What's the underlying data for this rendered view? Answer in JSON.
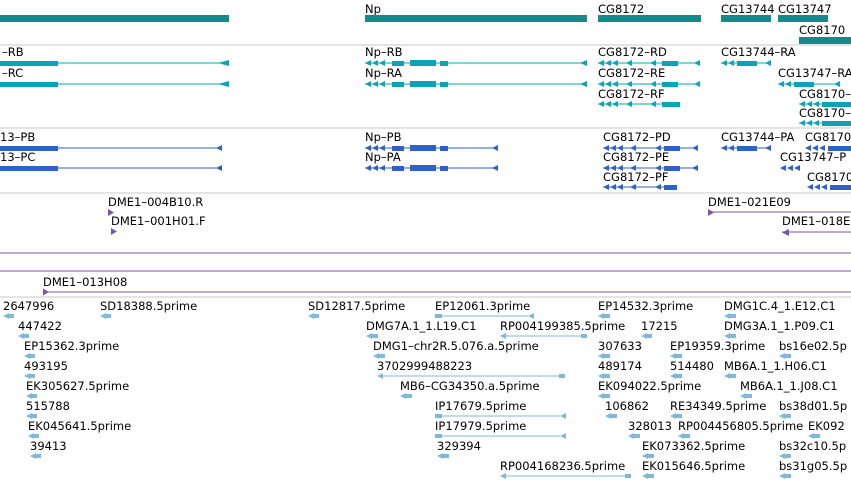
{
  "genes": {
    "np": "Np",
    "cg8172": "CG8172",
    "cg13744": "CG13744",
    "cg13747": "CG13747",
    "cg8170": "CG8170"
  },
  "transcripts": {
    "rb_left": "–RB",
    "rc_left": "–RC",
    "np_rb": "Np–RB",
    "np_ra": "Np–RA",
    "cg8172_rd": "CG8172–RD",
    "cg8172_re": "CG8172–RE",
    "cg8172_rf": "CG8172–RF",
    "cg13744_ra": "CG13744–RA",
    "cg13747_ra": "CG13747–RA",
    "cg8170_r1": "CG8170–",
    "cg8170_r2": "CG8170–"
  },
  "proteins": {
    "pb_left": "13–PB",
    "pc_left": "13–PC",
    "np_pb": "Np–PB",
    "np_pa": "Np–PA",
    "cg8172_pd": "CG8172–PD",
    "cg8172_pe": "CG8172–PE",
    "cg8172_pf": "CG8172–PF",
    "cg13744_pa": "CG13744–PA",
    "cg8170_p1": "CG8170",
    "cg13747_p": "CG13747–P",
    "cg8170_p2": "CG8170"
  },
  "clones": {
    "c1": "DME1–004B10.R",
    "c2": "DME1–001H01.F",
    "c3": "DME1–021E09",
    "c4": "DME1–018E",
    "c5": "DME1–013H08"
  },
  "ests": {
    "e01": "2647996",
    "e02": "SD18388.5prime",
    "e03": "SD12817.5prime",
    "e04": "EP12061.3prime",
    "e05": "EP14532.3prime",
    "e06": "DMG1C.4_1.E12.C1",
    "e07": "447422",
    "e08": "DMG7A.1_1.L19.C1",
    "e09": "RP004199385.5prime",
    "e10": "17215",
    "e11": "DMG3A.1_1.P09.C1",
    "e12": "EP15362.3prime",
    "e13": "DMG1–chr2R.5.076.a.5prime",
    "e14": "307633",
    "e15": "EP19359.3prime",
    "e16": "bs16e02.5p",
    "e17": "493195",
    "e18": "3702999488223",
    "e19": "489174",
    "e20": "514480",
    "e21": "MB6A.1_1.H06.C1",
    "e22": "EK305627.5prime",
    "e23": "MB6–CG34350.a.5prime",
    "e24": "EK094022.5prime",
    "e25": "MB6A.1_1.J08.C1",
    "e26": "515788",
    "e27": "IP17679.5prime",
    "e28": "106862",
    "e29": "RE34349.5prime",
    "e30": "bs38d01.5p",
    "e31": "EK045641.5prime",
    "e32": "IP17979.5prime",
    "e33": "328013",
    "e34": "RP004456805.5prime",
    "e35": "EK092",
    "e36": "EK073362.5prime",
    "e37": "bs32c10.5p",
    "e38": "39413",
    "e39": "329394",
    "e40": "RP004168236.5prime",
    "e41": "EK015646.5prime",
    "e42": "bs31g05.5p"
  },
  "colors": {
    "gene": "#138b8b",
    "transcript": "#0aa3b8",
    "protein": "#2f62c7",
    "clone": "#7a55b5",
    "est": "#7fb8d9",
    "divider": "#c8c8c8"
  }
}
